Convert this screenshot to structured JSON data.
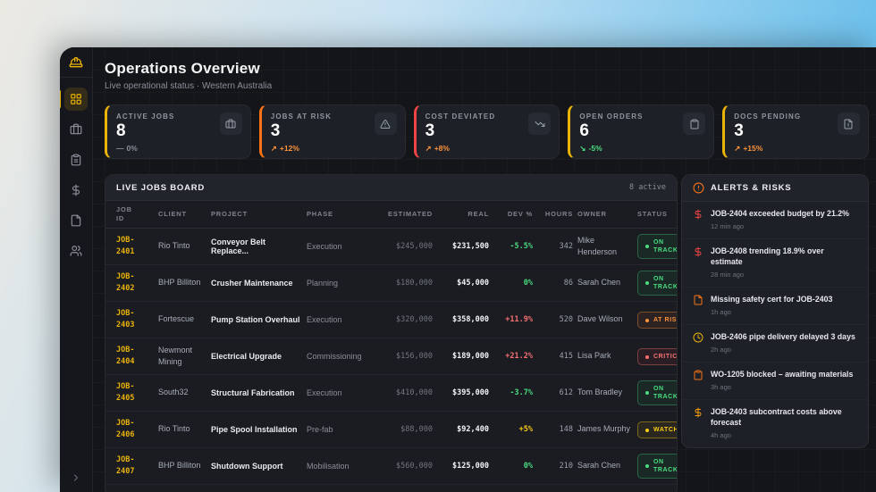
{
  "theme": {
    "accent_yellow": "#eab308",
    "accent_orange": "#f97316",
    "accent_red": "#ef4444",
    "accent_green": "#4ade80",
    "delta_orange": "#fb923c",
    "delta_gray": "#8b8f99",
    "dev_green": "#4ade80",
    "dev_red": "#f87171",
    "dev_yellow": "#facc15"
  },
  "sidebar": {
    "logo_icon": "hard-hat",
    "active_index": 0,
    "items": [
      {
        "name": "dashboard-grid",
        "icon": "layout-grid"
      },
      {
        "name": "briefcase",
        "icon": "briefcase"
      },
      {
        "name": "clipboard",
        "icon": "clipboard-list"
      },
      {
        "name": "finance",
        "icon": "dollar-sign"
      },
      {
        "name": "documents",
        "icon": "file"
      },
      {
        "name": "people",
        "icon": "users"
      }
    ],
    "collapse_icon": "chevron-right"
  },
  "header": {
    "title": "Operations Overview",
    "subtitle": "Live operational status · Western Australia"
  },
  "kpis": [
    {
      "label": "ACTIVE JOBS",
      "value": "8",
      "delta": "0%",
      "trend": "flat",
      "delta_color": "#8b8f99",
      "accent": "#eab308",
      "icon": "briefcase"
    },
    {
      "label": "JOBS AT RISK",
      "value": "3",
      "delta": "+12%",
      "trend": "up",
      "delta_color": "#fb923c",
      "accent": "#f97316",
      "icon": "alert-triangle"
    },
    {
      "label": "COST DEVIATED",
      "value": "3",
      "delta": "+8%",
      "trend": "up",
      "delta_color": "#fb923c",
      "accent": "#ef4444",
      "icon": "trending-down"
    },
    {
      "label": "OPEN ORDERS",
      "value": "6",
      "delta": "-5%",
      "trend": "down",
      "delta_color": "#4ade80",
      "accent": "#eab308",
      "icon": "clipboard"
    },
    {
      "label": "DOCS PENDING",
      "value": "3",
      "delta": "+15%",
      "trend": "up",
      "delta_color": "#fb923c",
      "accent": "#eab308",
      "icon": "file-alert"
    }
  ],
  "jobs_board": {
    "title": "LIVE JOBS BOARD",
    "count_label": "8 active",
    "columns": [
      "JOB ID",
      "CLIENT",
      "PROJECT",
      "PHASE",
      "ESTIMATED",
      "REAL",
      "DEV %",
      "HOURS",
      "OWNER",
      "STATUS"
    ],
    "rows": [
      {
        "id": "JOB-2401",
        "client": "Rio Tinto",
        "project": "Conveyor Belt Replace...",
        "phase": "Execution",
        "estimated": "$245,000",
        "real": "$231,500",
        "dev": "-5.5%",
        "dev_tone": "green",
        "hours": "342",
        "owner": "Mike Henderson",
        "status": "ON TRACK",
        "status_tone": "green"
      },
      {
        "id": "JOB-2402",
        "client": "BHP Billiton",
        "project": "Crusher Maintenance",
        "phase": "Planning",
        "estimated": "$180,000",
        "real": "$45,000",
        "dev": "0%",
        "dev_tone": "green",
        "hours": "86",
        "owner": "Sarah Chen",
        "status": "ON TRACK",
        "status_tone": "green"
      },
      {
        "id": "JOB-2403",
        "client": "Fortescue",
        "project": "Pump Station Overhaul",
        "phase": "Execution",
        "estimated": "$320,000",
        "real": "$358,000",
        "dev": "+11.9%",
        "dev_tone": "red",
        "hours": "520",
        "owner": "Dave Wilson",
        "status": "AT RISK",
        "status_tone": "orange"
      },
      {
        "id": "JOB-2404",
        "client": "Newmont Mining",
        "project": "Electrical Upgrade",
        "phase": "Commissioning",
        "estimated": "$156,000",
        "real": "$189,000",
        "dev": "+21.2%",
        "dev_tone": "red",
        "hours": "415",
        "owner": "Lisa Park",
        "status": "CRITICAL",
        "status_tone": "red"
      },
      {
        "id": "JOB-2405",
        "client": "South32",
        "project": "Structural Fabrication",
        "phase": "Execution",
        "estimated": "$410,000",
        "real": "$395,000",
        "dev": "-3.7%",
        "dev_tone": "green",
        "hours": "612",
        "owner": "Tom Bradley",
        "status": "ON TRACK",
        "status_tone": "green"
      },
      {
        "id": "JOB-2406",
        "client": "Rio Tinto",
        "project": "Pipe Spool Installation",
        "phase": "Pre-fab",
        "estimated": "$88,000",
        "real": "$92,400",
        "dev": "+5%",
        "dev_tone": "yellow",
        "hours": "148",
        "owner": "James Murphy",
        "status": "WATCH",
        "status_tone": "yellow"
      },
      {
        "id": "JOB-2407",
        "client": "BHP Billiton",
        "project": "Shutdown Support",
        "phase": "Mobilisation",
        "estimated": "$560,000",
        "real": "$125,000",
        "dev": "0%",
        "dev_tone": "green",
        "hours": "210",
        "owner": "Sarah Chen",
        "status": "ON TRACK",
        "status_tone": "green"
      }
    ]
  },
  "alerts": {
    "title": "ALERTS & RISKS",
    "header_icon": "alert-circle",
    "header_icon_color": "#f97316",
    "items": [
      {
        "icon": "dollar-sign",
        "icon_color": "#ef4444",
        "text": "JOB-2404 exceeded budget by 21.2%",
        "time": "12 min ago"
      },
      {
        "icon": "dollar-sign",
        "icon_color": "#ef4444",
        "text": "JOB-2408 trending 18.9% over estimate",
        "time": "28 min ago"
      },
      {
        "icon": "file",
        "icon_color": "#f97316",
        "text": "Missing safety cert for JOB-2403",
        "time": "1h ago"
      },
      {
        "icon": "clock",
        "icon_color": "#eab308",
        "text": "JOB-2406 pipe delivery delayed 3 days",
        "time": "2h ago"
      },
      {
        "icon": "clipboard",
        "icon_color": "#f97316",
        "text": "WO-1205 blocked – awaiting materials",
        "time": "3h ago"
      },
      {
        "icon": "dollar-sign",
        "icon_color": "#f59e0b",
        "text": "JOB-2403 subcontract costs above forecast",
        "time": "4h ago"
      }
    ]
  }
}
